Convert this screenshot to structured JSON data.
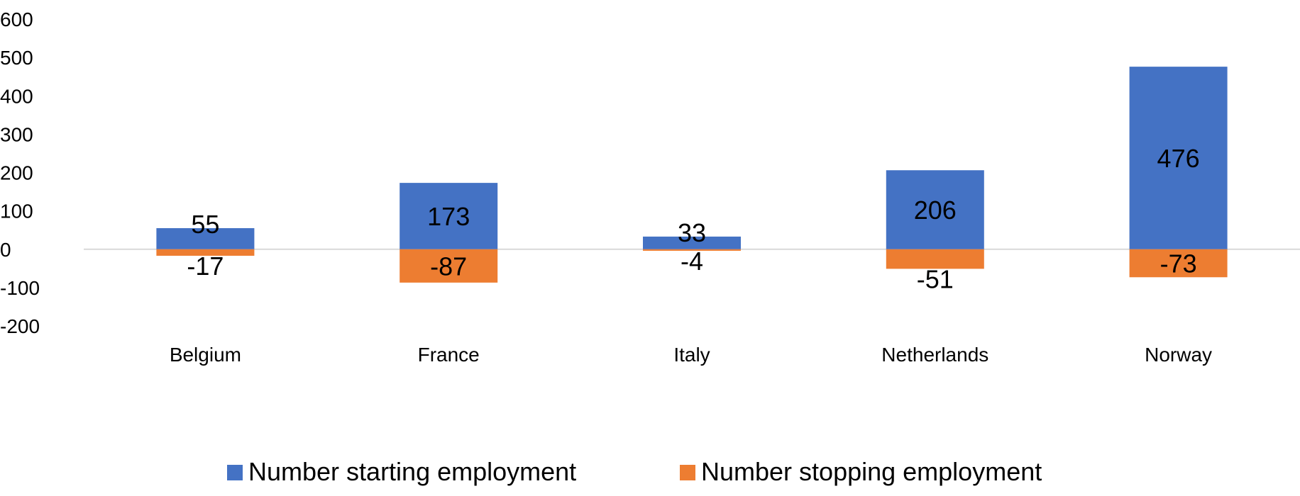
{
  "chart_data": {
    "type": "bar",
    "stacked": true,
    "categories": [
      "Belgium",
      "France",
      "Italy",
      "Netherlands",
      "Norway"
    ],
    "series": [
      {
        "name": "Number starting employment",
        "color": "#4472C4",
        "values": [
          55,
          173,
          33,
          206,
          476
        ]
      },
      {
        "name": "Number stopping employment",
        "color": "#ED7D31",
        "values": [
          -17,
          -87,
          -4,
          -51,
          -73
        ]
      }
    ],
    "y_ticks": [
      "600",
      "500",
      "400",
      "300",
      "200",
      "100",
      "0",
      "-100",
      "-200"
    ],
    "ylim": [
      -200,
      600
    ],
    "grid": false,
    "legend_position": "bottom"
  }
}
